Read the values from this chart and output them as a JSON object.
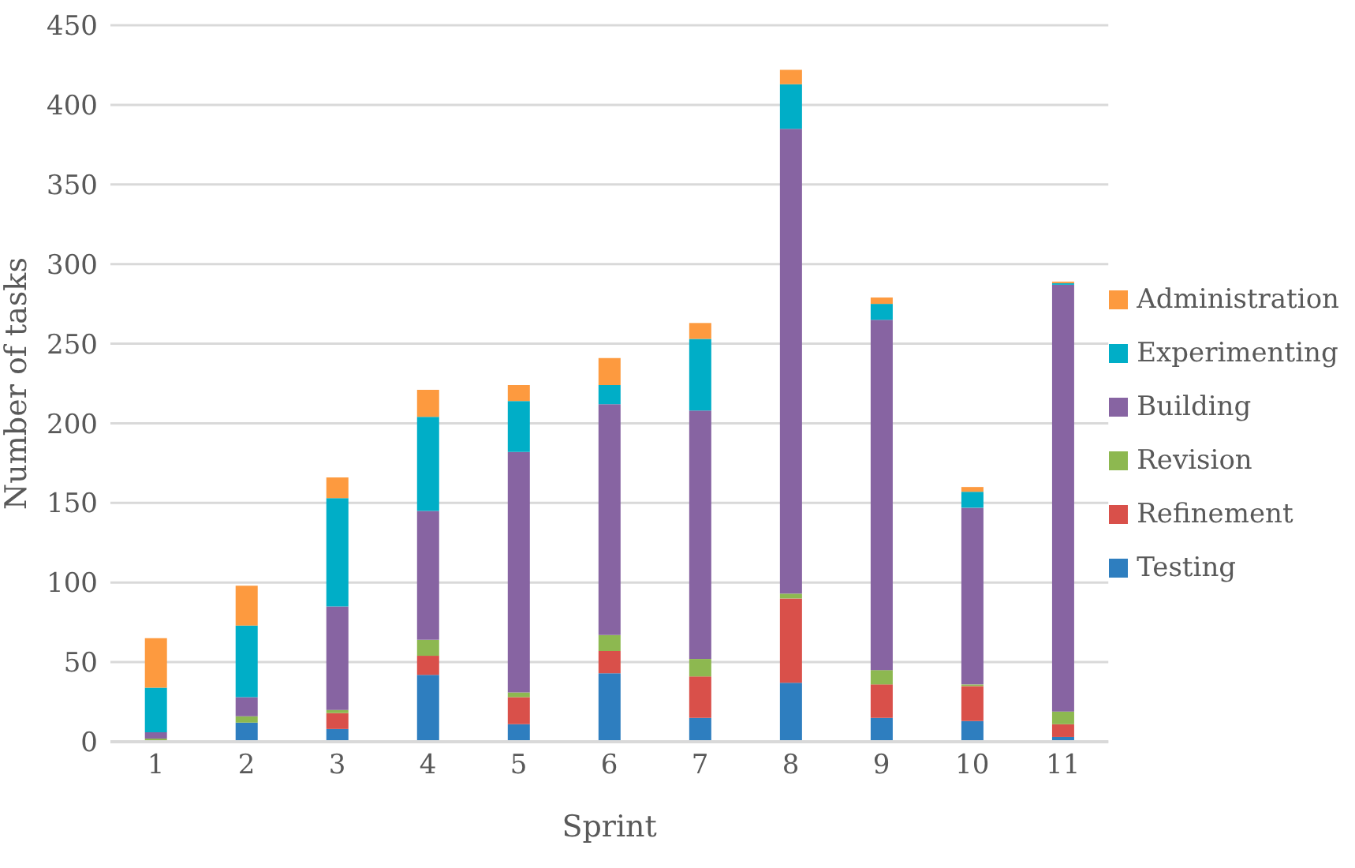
{
  "chart_data": {
    "type": "bar",
    "stacked": true,
    "xlabel": "Sprint",
    "ylabel": "Number of tasks",
    "categories": [
      "1",
      "2",
      "3",
      "4",
      "5",
      "6",
      "7",
      "8",
      "9",
      "10",
      "11"
    ],
    "series": [
      {
        "name": "Testing",
        "color": "#2e7ebf",
        "values": [
          0,
          12,
          8,
          42,
          11,
          43,
          15,
          37,
          15,
          13,
          3
        ]
      },
      {
        "name": "Refinement",
        "color": "#d9504a",
        "values": [
          0,
          0,
          10,
          12,
          17,
          14,
          26,
          53,
          21,
          22,
          8
        ]
      },
      {
        "name": "Revision",
        "color": "#8db850",
        "values": [
          2,
          4,
          2,
          10,
          3,
          10,
          11,
          3,
          9,
          1,
          8
        ]
      },
      {
        "name": "Building",
        "color": "#8764a2",
        "values": [
          4,
          12,
          65,
          81,
          151,
          145,
          156,
          292,
          220,
          111,
          268
        ]
      },
      {
        "name": "Experimenting",
        "color": "#00aec7",
        "values": [
          28,
          45,
          68,
          59,
          32,
          12,
          45,
          28,
          10,
          10,
          1
        ]
      },
      {
        "name": "Administration",
        "color": "#fd9a3f",
        "values": [
          31,
          25,
          13,
          17,
          10,
          17,
          10,
          9,
          4,
          3,
          1
        ]
      }
    ],
    "ylim": [
      0,
      450
    ],
    "yticks": [
      0,
      50,
      100,
      150,
      200,
      250,
      300,
      350,
      400,
      450
    ],
    "grid": "y",
    "legend": "right"
  }
}
